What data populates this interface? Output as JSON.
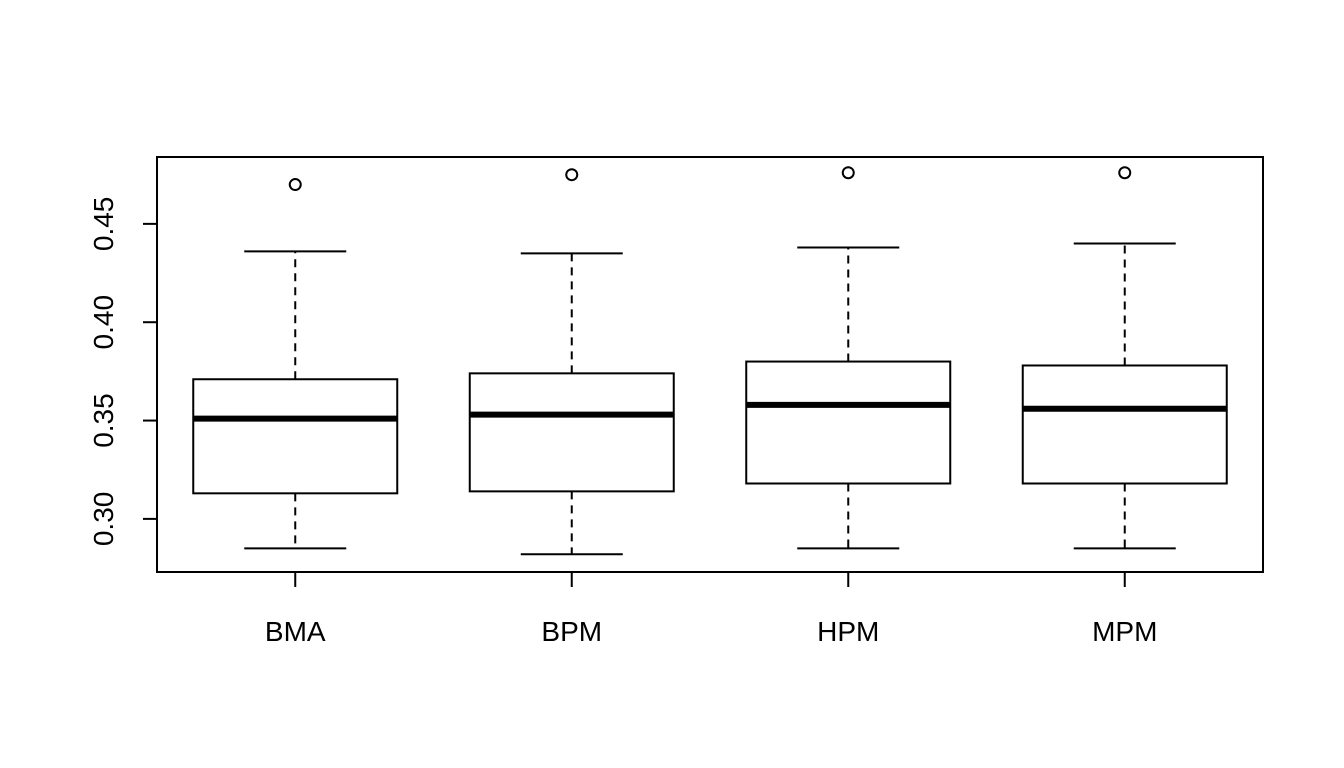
{
  "chart_data": {
    "type": "box",
    "title": "",
    "xlabel": "",
    "ylabel": "",
    "ylim": [
      0.273,
      0.484
    ],
    "yticks": [
      0.3,
      0.35,
      0.4,
      0.45
    ],
    "ytick_labels": [
      "0.30",
      "0.35",
      "0.40",
      "0.45"
    ],
    "categories": [
      "BMA",
      "BPM",
      "HPM",
      "MPM"
    ],
    "boxes": [
      {
        "label": "BMA",
        "whisker_low": 0.285,
        "q1": 0.313,
        "median": 0.351,
        "q3": 0.371,
        "whisker_high": 0.436,
        "outliers": [
          0.47
        ]
      },
      {
        "label": "BPM",
        "whisker_low": 0.282,
        "q1": 0.314,
        "median": 0.353,
        "q3": 0.374,
        "whisker_high": 0.435,
        "outliers": [
          0.475
        ]
      },
      {
        "label": "HPM",
        "whisker_low": 0.285,
        "q1": 0.318,
        "median": 0.358,
        "q3": 0.38,
        "whisker_high": 0.438,
        "outliers": [
          0.476
        ]
      },
      {
        "label": "MPM",
        "whisker_low": 0.285,
        "q1": 0.318,
        "median": 0.356,
        "q3": 0.378,
        "whisker_high": 0.44,
        "outliers": [
          0.476
        ]
      }
    ],
    "grid": false,
    "legend": "none",
    "colors": {
      "box_fill": "#ffffff",
      "stroke": "#000000"
    }
  }
}
